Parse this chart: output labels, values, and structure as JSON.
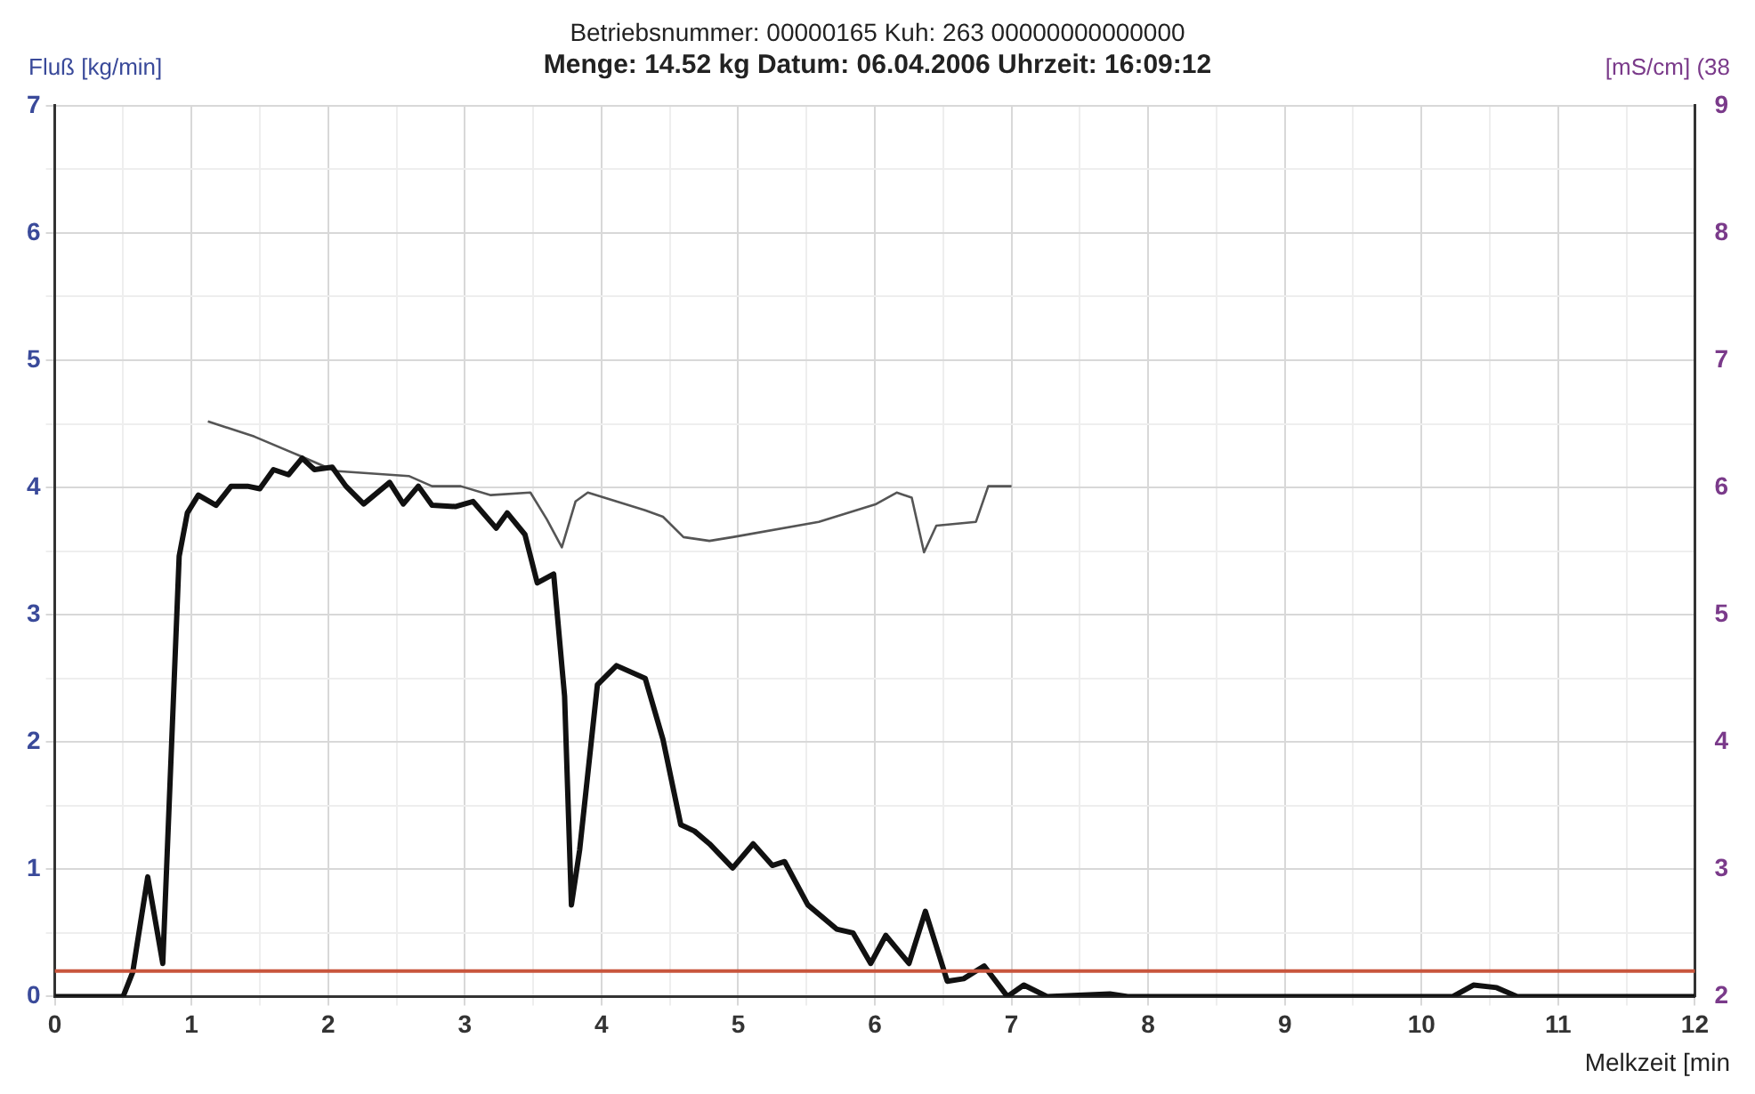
{
  "chart_data": {
    "type": "line",
    "title": "Menge: 14.52 kg   Datum: 06.04.2006   Uhrzeit: 16:09:12",
    "subtitle": "Betriebsnummer: 00000165   Kuh: 263   00000000000000",
    "xlabel": "Melkzeit [min",
    "ylabel": "Fluß [kg/min]",
    "y2label": "[mS/cm] (38",
    "series": [
      {
        "color": "#111111",
        "x": [
          0,
          0.5,
          0.57,
          0.68,
          0.79,
          0.91,
          0.97,
          1.05,
          1.18,
          1.29,
          1.41,
          1.5,
          1.6,
          1.71,
          1.81,
          1.9,
          2.03,
          2.13,
          2.26,
          2.45,
          2.55,
          2.66,
          2.76,
          2.93,
          3.06,
          3.23,
          3.31,
          3.44,
          3.53,
          3.65,
          3.73,
          3.78,
          3.84,
          3.97,
          4.11,
          4.32,
          4.45,
          4.58,
          4.68,
          4.79,
          4.96,
          5.11,
          5.25,
          5.34,
          5.51,
          5.72,
          5.84,
          5.97,
          6.08,
          6.25,
          6.37,
          6.53,
          6.65,
          6.8,
          6.97,
          7.09,
          7.26,
          7.72,
          7.85,
          10.23,
          10.38,
          10.55,
          10.7,
          12
        ],
        "values": [
          0,
          0,
          0.19,
          0.94,
          0.26,
          3.46,
          3.8,
          3.94,
          3.86,
          4.01,
          4.01,
          3.99,
          4.14,
          4.1,
          4.23,
          4.14,
          4.16,
          4.01,
          3.87,
          4.04,
          3.87,
          4.01,
          3.86,
          3.85,
          3.89,
          3.68,
          3.8,
          3.63,
          3.25,
          3.32,
          2.36,
          0.72,
          1.15,
          2.45,
          2.6,
          2.5,
          2.02,
          1.35,
          1.3,
          1.2,
          1.01,
          1.2,
          1.03,
          1.06,
          0.72,
          0.53,
          0.5,
          0.26,
          0.48,
          0.26,
          0.67,
          0.12,
          0.14,
          0.24,
          0,
          0.09,
          0,
          0.02,
          0,
          0,
          0.09,
          0.07,
          0,
          0
        ]
      },
      {
        "color": "#555555",
        "axis": "y2",
        "x": [
          1.12,
          1.46,
          1.79,
          2.05,
          2.59,
          2.76,
          2.97,
          3.19,
          3.48,
          3.6,
          3.71,
          3.81,
          3.9,
          4.32,
          4.45,
          4.6,
          4.79,
          4.96,
          5.59,
          6.01,
          6.16,
          6.27,
          6.36,
          6.45,
          6.74,
          6.83,
          7.0
        ],
        "values": [
          6.52,
          6.4,
          6.25,
          6.13,
          6.09,
          6.01,
          6.01,
          5.94,
          5.96,
          5.75,
          5.53,
          5.89,
          5.96,
          5.82,
          5.77,
          5.61,
          5.58,
          5.61,
          5.73,
          5.87,
          5.96,
          5.92,
          5.49,
          5.7,
          5.73,
          6.01,
          6.01
        ]
      }
    ],
    "xlim": [
      0,
      12
    ],
    "xticks": [
      0,
      {
        "value": 0.5,
        "label": null
      },
      1,
      {
        "value": 1.5,
        "label": null
      },
      2,
      {
        "value": 2.5,
        "label": null
      },
      3,
      {
        "value": 3.5,
        "label": null
      },
      4,
      {
        "value": 4.5,
        "label": null
      },
      5,
      {
        "value": 5.5,
        "label": null
      },
      6,
      {
        "value": 6.5,
        "label": null
      },
      7,
      {
        "value": 7.5,
        "label": null
      },
      8,
      {
        "value": 8.5,
        "label": null
      },
      9,
      {
        "value": 9.5,
        "label": null
      },
      10,
      {
        "value": 10.5,
        "label": null
      },
      11,
      {
        "value": 11.5,
        "label": null
      },
      12
    ],
    "ylim": [
      0,
      7
    ],
    "yticks": [
      0,
      {
        "value": 0.5,
        "label": null
      },
      1,
      {
        "value": 1.5,
        "label": null
      },
      2,
      {
        "value": 2.5,
        "label": null
      },
      3,
      {
        "value": 3.5,
        "label": null
      },
      4,
      {
        "value": 4.5,
        "label": null
      },
      5,
      {
        "value": 5.5,
        "label": null
      },
      6,
      {
        "value": 6.5,
        "label": null
      },
      7
    ],
    "y2lim": [
      2,
      9
    ],
    "y2ticks": [
      2,
      3,
      4,
      5,
      6,
      7,
      8,
      9
    ],
    "ref_lines": [
      {
        "axis": "y",
        "value": 0.2,
        "color": "#c8553d"
      }
    ],
    "grid": true,
    "marker": "none"
  }
}
